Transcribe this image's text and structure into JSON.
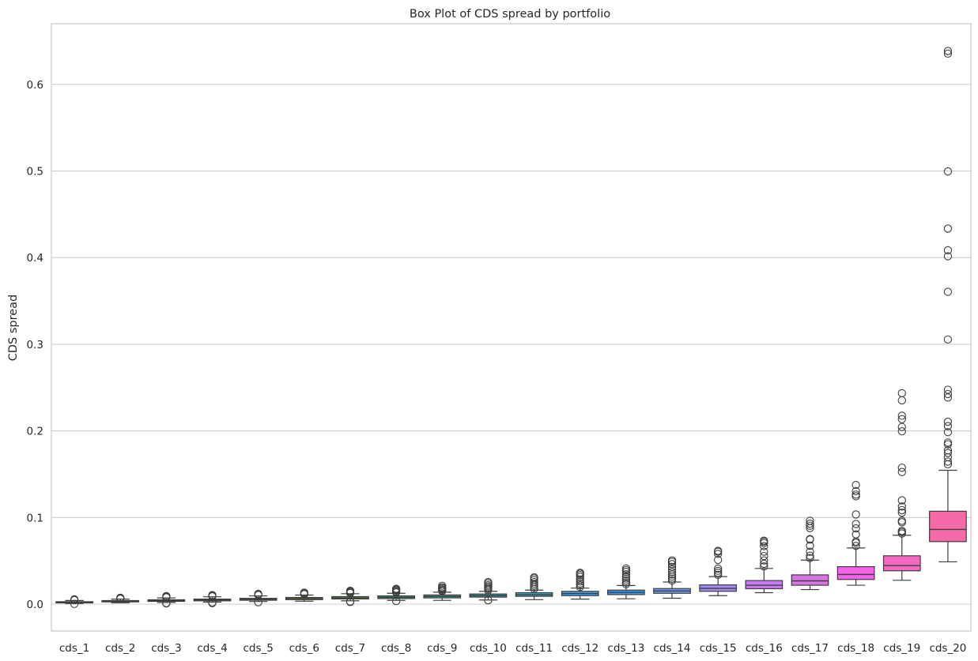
{
  "chart_data": {
    "type": "box",
    "title": "Box Plot of CDS spread by portfolio",
    "xlabel": "",
    "ylabel": "CDS spread",
    "ylim": [
      -0.031,
      0.67
    ],
    "yticks": [
      0.0,
      0.1,
      0.2,
      0.3,
      0.4,
      0.5,
      0.6
    ],
    "ytick_labels": [
      "0.0",
      "0.1",
      "0.2",
      "0.3",
      "0.4",
      "0.5",
      "0.6"
    ],
    "grid": "horizontal",
    "categories": [
      "cds_1",
      "cds_2",
      "cds_3",
      "cds_4",
      "cds_5",
      "cds_6",
      "cds_7",
      "cds_8",
      "cds_9",
      "cds_10",
      "cds_11",
      "cds_12",
      "cds_13",
      "cds_14",
      "cds_15",
      "cds_16",
      "cds_17",
      "cds_18",
      "cds_19",
      "cds_20"
    ],
    "colors": [
      "#f77189",
      "#f27753",
      "#d58c32",
      "#bb9832",
      "#a4a031",
      "#88a931",
      "#50b131",
      "#34ae91",
      "#36ada4",
      "#37abb5",
      "#39a9c7",
      "#3ba3ec",
      "#3a9ff9",
      "#6e9af4",
      "#a48cf4",
      "#cc7af4",
      "#d973e2",
      "#f463e8",
      "#f668c2",
      "#f56ba7"
    ],
    "series": [
      {
        "q1": 0.0015,
        "median": 0.0022,
        "q3": 0.0028,
        "whislo": 0.0008,
        "whishi": 0.0042,
        "fliers": [
          0.0046,
          0.005,
          0.0002,
          0.0055
        ]
      },
      {
        "q1": 0.0026,
        "median": 0.0033,
        "q3": 0.0041,
        "whislo": 0.0016,
        "whishi": 0.0058,
        "fliers": [
          0.0062,
          0.0068,
          0.0074
        ]
      },
      {
        "q1": 0.0032,
        "median": 0.0042,
        "q3": 0.005,
        "whislo": 0.0019,
        "whishi": 0.0072,
        "fliers": [
          0.0078,
          0.0085,
          0.0093,
          0.0012,
          0.0008
        ]
      },
      {
        "q1": 0.0038,
        "median": 0.0048,
        "q3": 0.0058,
        "whislo": 0.0024,
        "whishi": 0.0085,
        "fliers": [
          0.009,
          0.0097,
          0.0105,
          0.0012,
          0.0019
        ]
      },
      {
        "q1": 0.0045,
        "median": 0.0055,
        "q3": 0.0067,
        "whislo": 0.003,
        "whishi": 0.0095,
        "fliers": [
          0.0105,
          0.0112,
          0.0118,
          0.0022
        ]
      },
      {
        "q1": 0.0052,
        "median": 0.0064,
        "q3": 0.0077,
        "whislo": 0.0034,
        "whishi": 0.0105,
        "fliers": [
          0.0115,
          0.0125,
          0.0133
        ]
      },
      {
        "q1": 0.006,
        "median": 0.0072,
        "q3": 0.0087,
        "whislo": 0.0039,
        "whishi": 0.012,
        "fliers": [
          0.0128,
          0.0138,
          0.0148,
          0.0155,
          0.0025,
          0.003
        ]
      },
      {
        "q1": 0.0064,
        "median": 0.0079,
        "q3": 0.0095,
        "whislo": 0.0043,
        "whishi": 0.0125,
        "fliers": [
          0.0135,
          0.0145,
          0.0158,
          0.0168,
          0.0178,
          0.0035
        ]
      },
      {
        "q1": 0.0072,
        "median": 0.0088,
        "q3": 0.0106,
        "whislo": 0.0044,
        "whishi": 0.0138,
        "fliers": [
          0.015,
          0.016,
          0.0172,
          0.0185,
          0.0195,
          0.0212
        ]
      },
      {
        "q1": 0.0081,
        "median": 0.0098,
        "q3": 0.0117,
        "whislo": 0.0048,
        "whishi": 0.0148,
        "fliers": [
          0.016,
          0.0175,
          0.019,
          0.0205,
          0.022,
          0.024,
          0.0255,
          0.0045
        ]
      },
      {
        "q1": 0.009,
        "median": 0.0109,
        "q3": 0.0132,
        "whislo": 0.0052,
        "whishi": 0.0162,
        "fliers": [
          0.0175,
          0.0195,
          0.0215,
          0.0235,
          0.0255,
          0.0278,
          0.0298,
          0.031
        ]
      },
      {
        "q1": 0.0098,
        "median": 0.0122,
        "q3": 0.0148,
        "whislo": 0.0058,
        "whishi": 0.0185,
        "fliers": [
          0.0198,
          0.0218,
          0.0238,
          0.0262,
          0.0285,
          0.0315,
          0.0335,
          0.0352,
          0.0362
        ]
      },
      {
        "q1": 0.011,
        "median": 0.0136,
        "q3": 0.0162,
        "whislo": 0.0062,
        "whishi": 0.0215,
        "fliers": [
          0.023,
          0.025,
          0.0272,
          0.0295,
          0.032,
          0.0345,
          0.0372,
          0.0392,
          0.0412
        ]
      },
      {
        "q1": 0.0125,
        "median": 0.0152,
        "q3": 0.018,
        "whislo": 0.0068,
        "whishi": 0.0255,
        "fliers": [
          0.0272,
          0.0295,
          0.0318,
          0.0342,
          0.037,
          0.04,
          0.043,
          0.0462,
          0.049,
          0.0505
        ]
      },
      {
        "q1": 0.0148,
        "median": 0.0182,
        "q3": 0.0222,
        "whislo": 0.0098,
        "whishi": 0.0318,
        "fliers": [
          0.0338,
          0.0362,
          0.0385,
          0.041,
          0.051,
          0.058,
          0.0605,
          0.0615
        ]
      },
      {
        "q1": 0.0178,
        "median": 0.0218,
        "q3": 0.0272,
        "whislo": 0.0132,
        "whishi": 0.0412,
        "fliers": [
          0.0435,
          0.0465,
          0.0505,
          0.0555,
          0.0605,
          0.067,
          0.0705,
          0.0722,
          0.0732
        ]
      },
      {
        "q1": 0.0218,
        "median": 0.0268,
        "q3": 0.0338,
        "whislo": 0.0168,
        "whishi": 0.0508,
        "fliers": [
          0.0532,
          0.0558,
          0.0605,
          0.0675,
          0.0745,
          0.0752,
          0.0878,
          0.0905,
          0.0928,
          0.0962
        ]
      },
      {
        "q1": 0.0285,
        "median": 0.0342,
        "q3": 0.0432,
        "whislo": 0.0218,
        "whishi": 0.0648,
        "fliers": [
          0.0672,
          0.0708,
          0.0722,
          0.0805,
          0.0875,
          0.0925,
          0.1035,
          0.1245,
          0.1265,
          0.1305,
          0.1375
        ]
      },
      {
        "q1": 0.0385,
        "median": 0.0445,
        "q3": 0.0558,
        "whislo": 0.0275,
        "whishi": 0.0795,
        "fliers": [
          0.0815,
          0.0832,
          0.0845,
          0.0945,
          0.0962,
          0.1055,
          0.1085,
          0.1128,
          0.1198,
          0.1525,
          0.1575,
          0.1995,
          0.2045,
          0.2135,
          0.2175,
          0.2352,
          0.2435
        ]
      },
      {
        "q1": 0.0722,
        "median": 0.0862,
        "q3": 0.1072,
        "whislo": 0.0488,
        "whishi": 0.1545,
        "fliers": [
          0.1615,
          0.1645,
          0.1695,
          0.1745,
          0.1775,
          0.1845,
          0.1865,
          0.1985,
          0.2055,
          0.2105,
          0.2385,
          0.2425,
          0.2475,
          0.3055,
          0.3605,
          0.4015,
          0.4085,
          0.4335,
          0.4995,
          0.6355,
          0.6385
        ]
      }
    ]
  }
}
